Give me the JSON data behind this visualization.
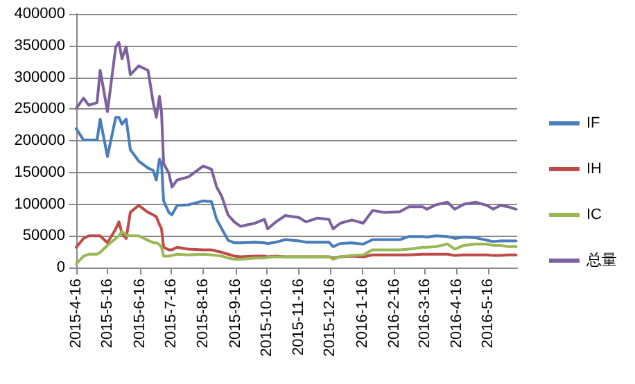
{
  "chart_data": {
    "type": "line",
    "x": [
      "2015-04-16",
      "2015-04-23",
      "2015-04-28",
      "2015-05-06",
      "2015-05-09",
      "2015-05-16",
      "2015-05-24",
      "2015-05-27",
      "2015-05-30",
      "2015-06-03",
      "2015-06-07",
      "2015-06-15",
      "2015-06-24",
      "2015-06-29",
      "2015-07-02",
      "2015-07-05",
      "2015-07-07",
      "2015-07-09",
      "2015-07-14",
      "2015-07-17",
      "2015-07-22",
      "2015-08-02",
      "2015-08-16",
      "2015-08-24",
      "2015-08-29",
      "2015-09-03",
      "2015-09-09",
      "2015-09-15",
      "2015-09-21",
      "2015-10-05",
      "2015-10-14",
      "2015-10-17",
      "2015-10-25",
      "2015-11-03",
      "2015-11-16",
      "2015-11-23",
      "2015-12-04",
      "2015-12-15",
      "2015-12-19",
      "2015-12-26",
      "2016-01-06",
      "2016-01-17",
      "2016-01-26",
      "2016-02-06",
      "2016-02-21",
      "2016-03-01",
      "2016-03-14",
      "2016-03-18",
      "2016-03-27",
      "2016-04-07",
      "2016-04-14",
      "2016-04-23",
      "2016-05-04",
      "2016-05-15",
      "2016-05-21",
      "2016-05-28",
      "2016-06-04",
      "2016-06-12"
    ],
    "series": [
      {
        "name": "IF",
        "color": "#4a7ebb",
        "values": [
          219000,
          201000,
          201000,
          201000,
          234000,
          175000,
          237000,
          237000,
          226000,
          234000,
          186000,
          168000,
          157000,
          153000,
          138000,
          171000,
          164000,
          105000,
          87000,
          83000,
          98000,
          99000,
          105000,
          104000,
          76000,
          61000,
          43000,
          39000,
          39000,
          40000,
          39000,
          38000,
          40000,
          44000,
          42000,
          40000,
          40000,
          40000,
          33000,
          38000,
          39000,
          37000,
          44000,
          44000,
          44000,
          49000,
          49000,
          48000,
          50000,
          49000,
          46000,
          48000,
          47000,
          43000,
          41000,
          42000,
          42000,
          42000
        ]
      },
      {
        "name": "IH",
        "color": "#be4b48",
        "values": [
          32000,
          46000,
          50000,
          50000,
          50000,
          39000,
          61000,
          72000,
          54000,
          46000,
          87000,
          98000,
          87000,
          83000,
          80000,
          68000,
          61000,
          32000,
          28000,
          28000,
          32000,
          29000,
          28000,
          28000,
          26000,
          24000,
          21000,
          18000,
          17000,
          18000,
          18000,
          17000,
          18000,
          17000,
          17000,
          17000,
          17000,
          17000,
          15000,
          17000,
          18000,
          17000,
          20000,
          20000,
          20000,
          20000,
          21000,
          21000,
          21000,
          21000,
          19000,
          20000,
          20000,
          20000,
          19000,
          19000,
          20000,
          20000
        ]
      },
      {
        "name": "IC",
        "color": "#98b954",
        "values": [
          6000,
          18000,
          21000,
          21000,
          24000,
          35000,
          46000,
          50000,
          57000,
          51000,
          50000,
          50000,
          43000,
          39000,
          39000,
          36000,
          32000,
          18000,
          18000,
          19000,
          21000,
          20000,
          21000,
          20000,
          19000,
          18000,
          15000,
          13000,
          13000,
          15000,
          15000,
          16000,
          17000,
          17000,
          17000,
          17000,
          17000,
          17000,
          13000,
          17000,
          19000,
          20000,
          28000,
          28000,
          28000,
          29000,
          32000,
          32000,
          33000,
          37000,
          29000,
          35000,
          37000,
          37000,
          35000,
          35000,
          33000,
          33000
        ]
      },
      {
        "name": "总量",
        "color": "#7d60a0",
        "values": [
          251000,
          267000,
          256000,
          260000,
          311000,
          246000,
          348000,
          355000,
          329000,
          348000,
          304000,
          318000,
          311000,
          260000,
          237000,
          270000,
          245000,
          164000,
          149000,
          127000,
          138000,
          143000,
          160000,
          155000,
          127000,
          112000,
          83000,
          72000,
          65000,
          70000,
          76000,
          61000,
          72000,
          82000,
          79000,
          72000,
          78000,
          76000,
          61000,
          70000,
          75000,
          70000,
          90000,
          87000,
          88000,
          96000,
          96000,
          92000,
          99000,
          103000,
          92000,
          100000,
          103000,
          98000,
          92000,
          98000,
          96000,
          92000
        ]
      }
    ],
    "xlim": [
      "2015-04-16",
      "2016-06-13"
    ],
    "xticks": [
      {
        "value": "2015-04-16",
        "label": "2015-4-16"
      },
      {
        "value": "2015-05-16",
        "label": "2015-5-16"
      },
      {
        "value": "2015-06-16",
        "label": "2015-6-16"
      },
      {
        "value": "2015-07-16",
        "label": "2015-7-16"
      },
      {
        "value": "2015-08-16",
        "label": "2015-8-16"
      },
      {
        "value": "2015-09-16",
        "label": "2015-9-16"
      },
      {
        "value": "2015-10-16",
        "label": "2015-10-16"
      },
      {
        "value": "2015-11-16",
        "label": "2015-11-16"
      },
      {
        "value": "2015-12-16",
        "label": "2015-12-16"
      },
      {
        "value": "2016-01-16",
        "label": "2016-1-16"
      },
      {
        "value": "2016-02-16",
        "label": "2016-2-16"
      },
      {
        "value": "2016-03-16",
        "label": "2016-3-16"
      },
      {
        "value": "2016-04-16",
        "label": "2016-4-16"
      },
      {
        "value": "2016-05-16",
        "label": "2016-5-16"
      }
    ],
    "ylim": [
      0,
      400000
    ],
    "yticks": [
      0,
      50000,
      100000,
      150000,
      200000,
      250000,
      300000,
      350000,
      400000
    ],
    "grid": "y",
    "legend": "right",
    "marker": "none",
    "line_style": "solid"
  }
}
